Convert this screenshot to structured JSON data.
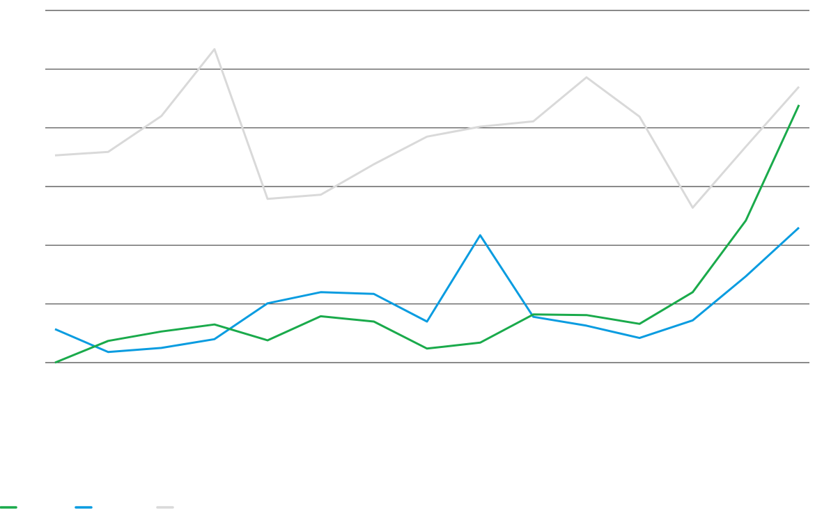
{
  "chart_data": {
    "type": "line",
    "title": "",
    "xlabel": "",
    "ylabel": "",
    "x": [
      1,
      2,
      3,
      4,
      5,
      6,
      7,
      8,
      9,
      10,
      11,
      12,
      13,
      14,
      15
    ],
    "ylim": [
      0,
      6
    ],
    "yticks": [
      0,
      1,
      2,
      3,
      4,
      5,
      6
    ],
    "grid": true,
    "legend_placement": "bottom-left",
    "series": [
      {
        "color": "#1aaa4b",
        "values": [
          0,
          0.37,
          0.53,
          0.65,
          0.38,
          0.79,
          0.7,
          0.24,
          0.34,
          0.82,
          0.81,
          0.66,
          1.2,
          2.42,
          4.39
        ]
      },
      {
        "color": "#0a9ce0",
        "values": [
          0.57,
          0.18,
          0.25,
          0.4,
          1.01,
          1.2,
          1.17,
          0.7,
          2.17,
          0.78,
          0.63,
          0.42,
          0.72,
          1.47,
          2.3
        ]
      },
      {
        "color": "#d9d9d9",
        "values": [
          3.53,
          3.59,
          4.2,
          5.34,
          2.79,
          2.86,
          3.38,
          3.85,
          4.02,
          4.11,
          4.86,
          4.19,
          2.64,
          3.68,
          4.7
        ]
      }
    ]
  }
}
